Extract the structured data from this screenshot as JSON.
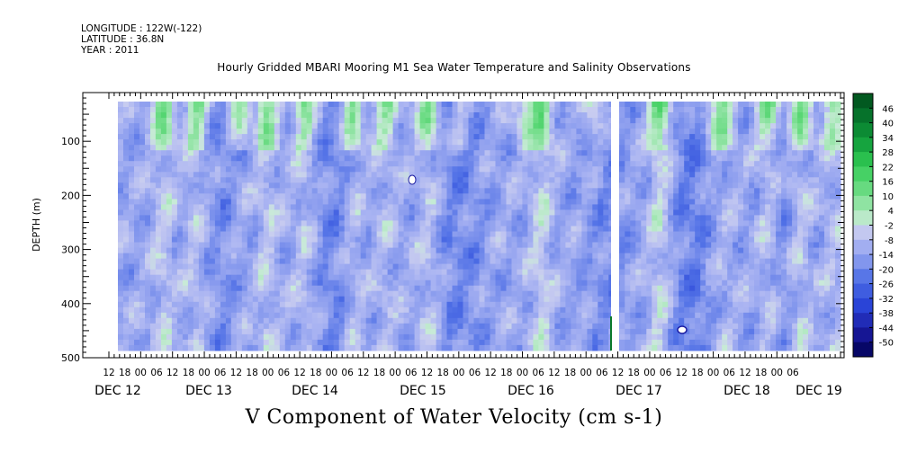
{
  "header": {
    "longitude": "LONGITUDE : 122W(-122)",
    "latitude": "LATITUDE : 36.8N",
    "year": "YEAR : 2011"
  },
  "chart_data": {
    "type": "heatmap",
    "title": "Hourly Gridded MBARI Mooring M1 Sea Water Temperature and Salinity Observations",
    "xlabel": "V Component of Water Velocity (cm s-1)",
    "ylabel": "DEPTH (m)",
    "y_ticks": [
      100,
      200,
      300,
      400,
      500
    ],
    "ylim": [
      500,
      10
    ],
    "x_hour_ticks": [
      "12",
      "18",
      "00",
      "06",
      "12",
      "18",
      "00",
      "06",
      "12",
      "18",
      "00",
      "06",
      "12",
      "18",
      "00",
      "06",
      "12",
      "18",
      "00",
      "06",
      "12",
      "18",
      "00",
      "06",
      "12",
      "18",
      "00",
      "06",
      "12",
      "18",
      "00",
      "06",
      "12",
      "18",
      "00",
      "06",
      "12",
      "18",
      "00",
      "06",
      "12",
      "18",
      "00",
      "06"
    ],
    "x_day_labels": [
      "DEC 12",
      "DEC 13",
      "DEC 14",
      "DEC 15",
      "DEC 16",
      "DEC 17",
      "DEC 18",
      "DEC 19"
    ],
    "colorbar_ticks": [
      46,
      40,
      34,
      28,
      22,
      16,
      10,
      4,
      -2,
      -8,
      -14,
      -20,
      -26,
      -32,
      -38,
      -44,
      -50
    ],
    "colorbar_range": [
      -50,
      52
    ],
    "data_gap": "DEC 17 00-04",
    "colors": {
      "strong_negative": "#000050",
      "negative": "#3355dd",
      "weak_negative": "#aab4f2",
      "near_zero": "#c8ccf0",
      "weak_positive": "#a8e8b8",
      "positive": "#33cc55",
      "strong_positive": "#004d1a"
    }
  }
}
